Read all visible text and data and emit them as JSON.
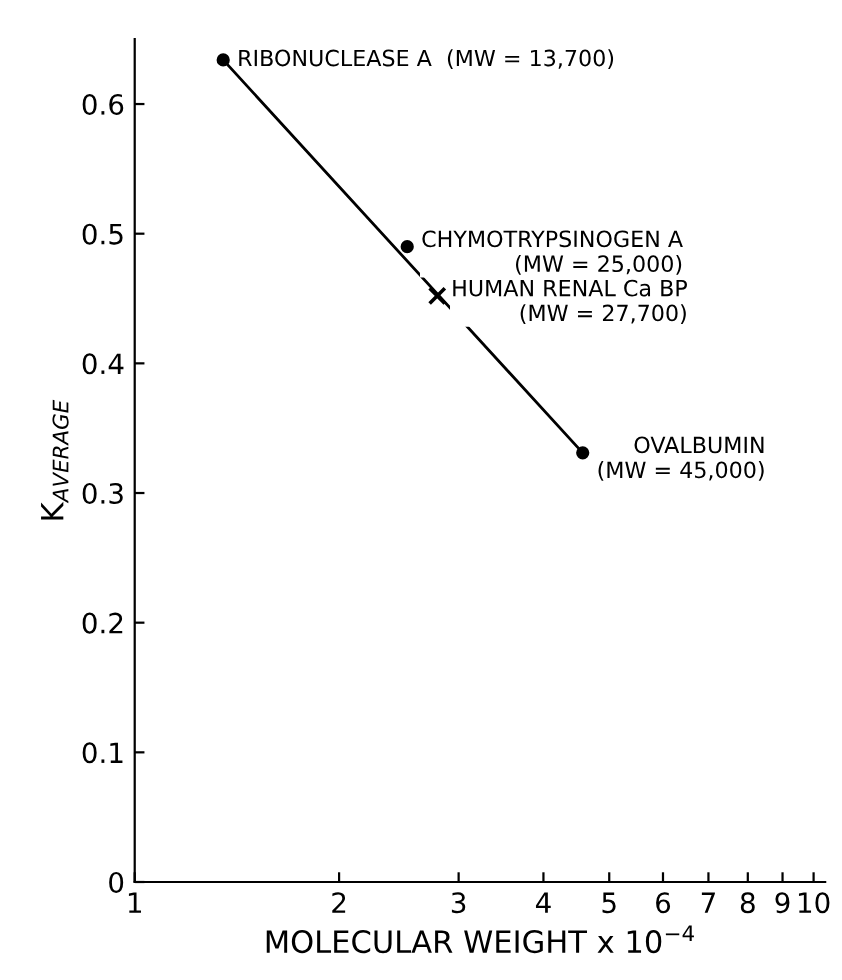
{
  "chart_data": {
    "type": "scatter",
    "xlabel": "MOLECULAR WEIGHT x 10$^{−4}$",
    "ylabel": "K$_{AVERAGE}$",
    "log": "x",
    "xlim": [
      1,
      10.4
    ],
    "xticks": [
      1,
      2,
      3,
      4,
      5,
      6,
      7,
      8,
      9,
      10
    ],
    "ylim": [
      0,
      0.65
    ],
    "yticks": [
      0,
      0.1,
      0.2,
      0.3,
      0.4,
      0.5,
      0.6
    ],
    "grid": false,
    "legend": false,
    "series": [
      {
        "type": "line",
        "color": "#000000",
        "marker": "none",
        "line_style": "solid",
        "x": [
          1.35,
          4.57
        ],
        "values": [
          0.634,
          0.331
        ]
      },
      {
        "color": "#000000",
        "marker": "circle",
        "x": [
          1.35,
          2.52,
          4.57
        ],
        "values": [
          0.634,
          0.49,
          0.331
        ]
      },
      {
        "color": "#000000",
        "marker": "cross",
        "x": [
          2.79
        ],
        "values": [
          0.452
        ]
      }
    ],
    "annotations": [
      {
        "text": "RIBONUCLEASE A  (MW = 13,700)",
        "x": 1.35,
        "y": 0.634
      },
      {
        "text": "CHYMOTRYPSINOGEN A\n(MW = 25,000)",
        "x": 2.52,
        "y": 0.49
      },
      {
        "text": "HUMAN RENAL Ca BP\n(MW = 27,700)",
        "x": 2.79,
        "y": 0.452
      },
      {
        "text": "OVALBUMIN\n(MW = 45,000)",
        "x": 4.57,
        "y": 0.331
      }
    ]
  }
}
